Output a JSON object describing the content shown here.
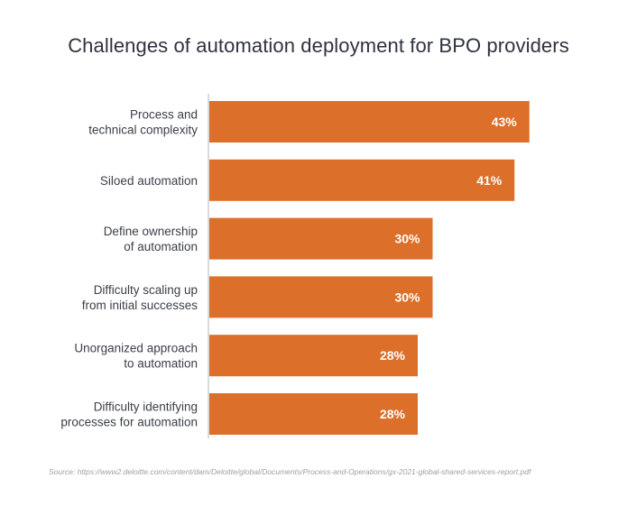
{
  "chart_data": {
    "type": "bar",
    "orientation": "horizontal",
    "title": "Challenges of automation deployment for BPO providers",
    "categories": [
      [
        "Process and",
        "technical complexity"
      ],
      [
        "Siloed automation"
      ],
      [
        "Define ownership",
        "of automation"
      ],
      [
        "Difficulty scaling up",
        "from initial successes"
      ],
      [
        "Unorganized approach",
        "to automation"
      ],
      [
        "Difficulty identifying",
        "processes for automation"
      ]
    ],
    "values": [
      43,
      41,
      30,
      30,
      28,
      28
    ],
    "value_labels": [
      "43%",
      "41%",
      "30%",
      "30%",
      "28%",
      "28%"
    ],
    "unit": "%",
    "xlim": [
      0,
      60
    ],
    "grid": false,
    "legend": "none",
    "bar_color": "#dc702a",
    "label_color": "#ffffff"
  },
  "source": "Source: https://www2.deloitte.com/content/dam/Deloitte/global/Documents/Process-and-Operations/gx-2021-global-shared-services-report.pdf"
}
